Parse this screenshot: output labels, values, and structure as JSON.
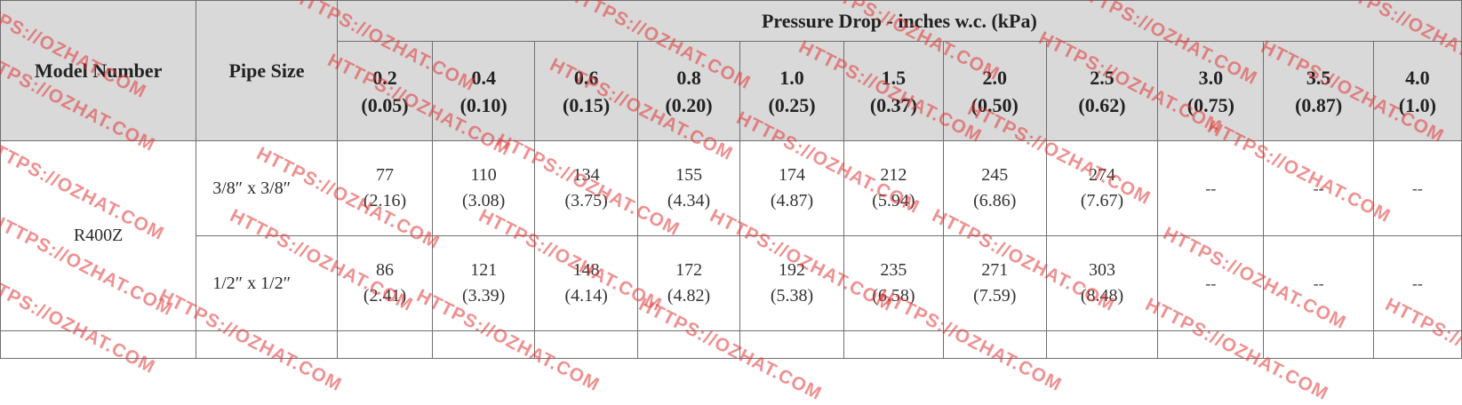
{
  "table": {
    "header_model": "Model Number",
    "header_pipe": "Pipe Size",
    "header_group": "Pressure Drop - inches w.c. (kPa)",
    "columns": [
      {
        "in": "0.2",
        "kpa": "(0.05)"
      },
      {
        "in": "0.4",
        "kpa": "(0.10)"
      },
      {
        "in": "0.6",
        "kpa": "(0.15)"
      },
      {
        "in": "0.8",
        "kpa": "(0.20)"
      },
      {
        "in": "1.0",
        "kpa": "(0.25)"
      },
      {
        "in": "1.5",
        "kpa": "(0.37)"
      },
      {
        "in": "2.0",
        "kpa": "(0.50)"
      },
      {
        "in": "2.5",
        "kpa": "(0.62)"
      },
      {
        "in": "3.0",
        "kpa": "(0.75)"
      },
      {
        "in": "3.5",
        "kpa": "(0.87)"
      },
      {
        "in": "4.0",
        "kpa": "(1.0)"
      }
    ],
    "model": "R400Z",
    "rows": [
      {
        "pipe": "3/8″ x 3/8″",
        "cells": [
          {
            "a": "77",
            "b": "(2.16)"
          },
          {
            "a": "110",
            "b": "(3.08)"
          },
          {
            "a": "134",
            "b": "(3.75)"
          },
          {
            "a": "155",
            "b": "(4.34)"
          },
          {
            "a": "174",
            "b": "(4.87)"
          },
          {
            "a": "212",
            "b": "(5.94)"
          },
          {
            "a": "245",
            "b": "(6.86)"
          },
          {
            "a": "274",
            "b": "(7.67)"
          },
          {
            "a": "--",
            "b": ""
          },
          {
            "a": "--",
            "b": ""
          },
          {
            "a": "--",
            "b": ""
          }
        ]
      },
      {
        "pipe": "1/2″ x 1/2″",
        "cells": [
          {
            "a": "86",
            "b": "(2.41)"
          },
          {
            "a": "121",
            "b": "(3.39)"
          },
          {
            "a": "148",
            "b": "(4.14)"
          },
          {
            "a": "172",
            "b": "(4.82)"
          },
          {
            "a": "192",
            "b": "(5.38)"
          },
          {
            "a": "235",
            "b": "(6.58)"
          },
          {
            "a": "271",
            "b": "(7.59)"
          },
          {
            "a": "303",
            "b": "(8.48)"
          },
          {
            "a": "--",
            "b": ""
          },
          {
            "a": "--",
            "b": ""
          },
          {
            "a": "--",
            "b": ""
          }
        ]
      }
    ]
  },
  "watermark": {
    "text": "HTTPS://OZHAT.COM",
    "color": "#e13737"
  }
}
